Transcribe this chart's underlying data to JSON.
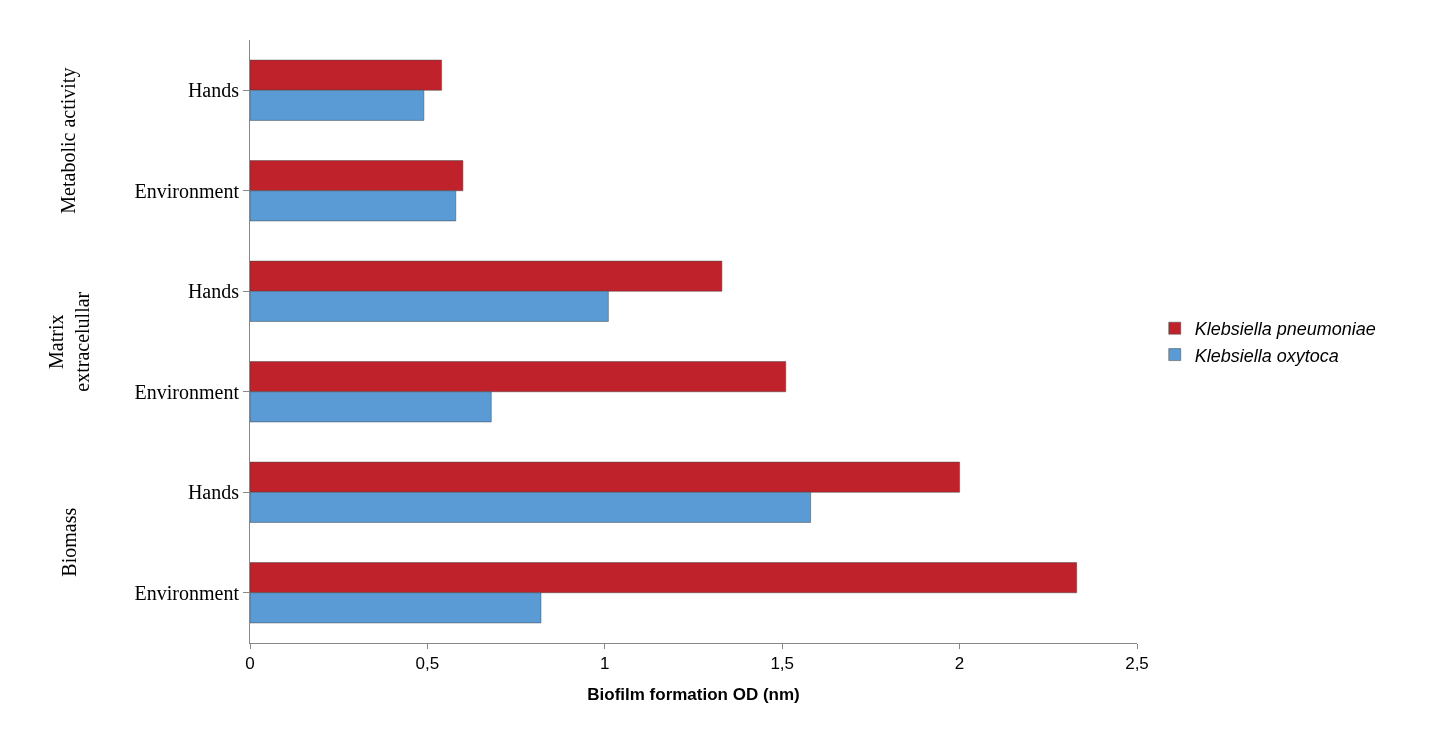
{
  "chart_data": {
    "type": "bar",
    "orientation": "horizontal",
    "xlabel": "Biofilm formation OD (nm)",
    "categories": [
      "Hands",
      "Environment",
      "Hands",
      "Environment",
      "Hands",
      "Environment"
    ],
    "series": [
      {
        "name": "Klebsiella pneumoniae",
        "color": "#c0222b",
        "values": [
          0.54,
          0.6,
          1.33,
          1.51,
          2.0,
          2.33
        ]
      },
      {
        "name": "Klebsiella oxytoca",
        "color": "#5b9bd5",
        "values": [
          0.49,
          0.58,
          1.01,
          0.68,
          1.58,
          0.82
        ]
      }
    ],
    "annotations": [
      "Metabolic activity",
      "Matrix\nextracelullar",
      "Biomass"
    ],
    "xlim": [
      0,
      2.5
    ],
    "xticks": [
      0,
      {
        "value": 0.5,
        "label": "0,5"
      },
      1,
      {
        "value": 1.5,
        "label": "1,5"
      },
      2,
      {
        "value": 2.5,
        "label": "2,5"
      }
    ],
    "legend": "right"
  }
}
